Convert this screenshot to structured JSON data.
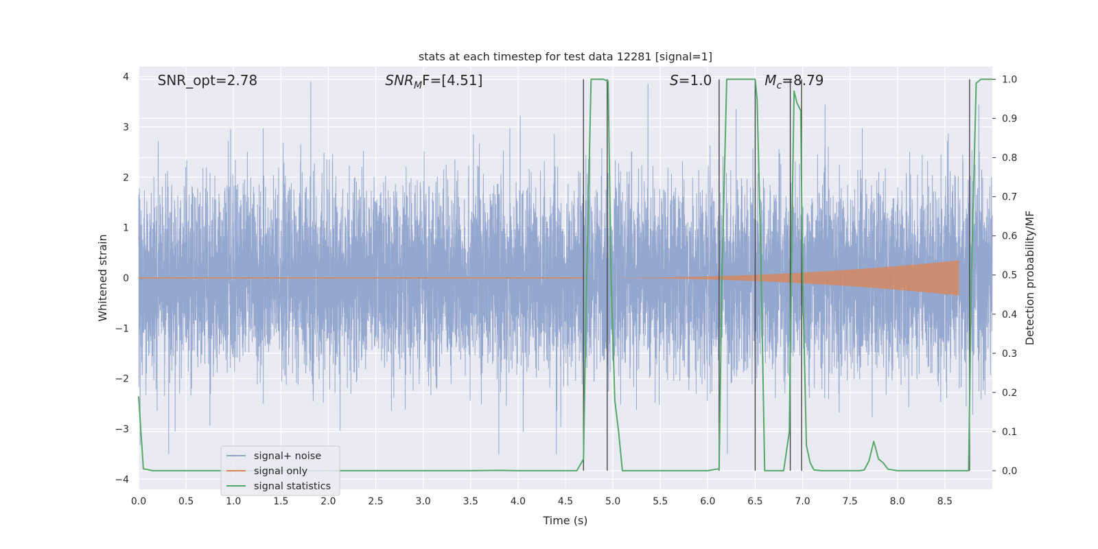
{
  "chart_data": {
    "type": "line",
    "title": "stats at each timestep for test data 12281 [signal=1]",
    "xlabel": "Time (s)",
    "ylabel": "Whitened strain",
    "y2label": "Detection probability/MF",
    "xlim": [
      0,
      9.0
    ],
    "ylim": [
      -4.2,
      4.2
    ],
    "y2lim": [
      -0.0475,
      1.0325
    ],
    "x_ticks": [
      "0.0",
      "0.5",
      "1.0",
      "1.5",
      "2.0",
      "2.5",
      "3.0",
      "3.5",
      "4.0",
      "4.5",
      "5.0",
      "5.5",
      "6.0",
      "6.5",
      "7.0",
      "7.5",
      "8.0",
      "8.5"
    ],
    "y_ticks": [
      "4",
      "3",
      "2",
      "1",
      "0",
      "−1",
      "−2",
      "−3",
      "−4"
    ],
    "y2_ticks": [
      "1.0",
      "0.9",
      "0.8",
      "0.7",
      "0.6",
      "0.5",
      "0.4",
      "0.3",
      "0.2",
      "0.1",
      "0.0"
    ],
    "grid": true,
    "legend_position": "lower-left",
    "colors": {
      "background": "#eaeaf2",
      "grid": "#ffffff",
      "signal_noise": "#8fa3cc",
      "signal_only": "#dd8452",
      "signal_statistics": "#55a868",
      "marker": "#444444"
    },
    "annotations": [
      {
        "text": "SNR_opt=2.78",
        "x": 0.2
      },
      {
        "text": "SNR",
        "sub": "M",
        "rest": "F=[4.51]",
        "x": 2.6
      },
      {
        "text": "S",
        "rest": "=1.0",
        "x": 5.6
      },
      {
        "text": "M",
        "sub": "c",
        "rest": "=8.79",
        "x": 6.6
      }
    ],
    "series": [
      {
        "name": "signal+ noise",
        "note": "whitened noise, roughly uniform amplitude about ±1.6 with spikes to about ±3.5 (max ≈3.95 near 1.07 s)"
      },
      {
        "name": "signal only",
        "note": "chirp rising from ~0 at 4.7 s to amplitude ≈0.35 at 8.65 s"
      },
      {
        "name": "signal statistics",
        "axis": "right",
        "x": [
          0.0,
          0.05,
          0.15,
          0.5,
          1.0,
          1.5,
          2.0,
          2.5,
          3.0,
          3.5,
          3.8,
          4.0,
          4.5,
          4.62,
          4.69,
          4.72,
          4.77,
          4.8,
          4.9,
          4.95,
          4.98,
          5.02,
          5.06,
          5.1,
          5.5,
          6.0,
          6.12,
          6.15,
          6.2,
          6.3,
          6.4,
          6.5,
          6.52,
          6.56,
          6.6,
          6.65,
          6.7,
          6.8,
          6.86,
          6.88,
          6.91,
          6.94,
          6.98,
          7.0,
          7.04,
          7.08,
          7.12,
          7.2,
          7.4,
          7.6,
          7.65,
          7.7,
          7.75,
          7.8,
          7.85,
          7.9,
          8.0,
          8.5,
          8.75,
          8.78,
          8.83,
          8.88,
          8.95,
          9.0
        ],
        "y": [
          0.19,
          0.005,
          0.0,
          0.0,
          0.0,
          0.0,
          0.0,
          0.0,
          0.0,
          0.0,
          0.001,
          0.0,
          0.0,
          0.0,
          0.03,
          0.45,
          1.0,
          1.0,
          1.0,
          0.995,
          0.5,
          0.18,
          0.1,
          0.0,
          0.0,
          0.0,
          0.005,
          0.5,
          1.0,
          1.0,
          1.0,
          1.0,
          0.95,
          0.55,
          0.0,
          0.0,
          0.0,
          0.0,
          0.1,
          0.5,
          0.97,
          0.94,
          0.92,
          0.5,
          0.065,
          0.02,
          0.002,
          0.0,
          0.0,
          0.0,
          0.002,
          0.025,
          0.075,
          0.03,
          0.02,
          0.004,
          0.0,
          0.0,
          0.0,
          0.5,
          0.99,
          1.0,
          1.0,
          1.0
        ]
      }
    ],
    "vertical_markers": [
      4.69,
      4.94,
      6.12,
      6.5,
      6.87,
      6.99,
      8.76
    ]
  }
}
